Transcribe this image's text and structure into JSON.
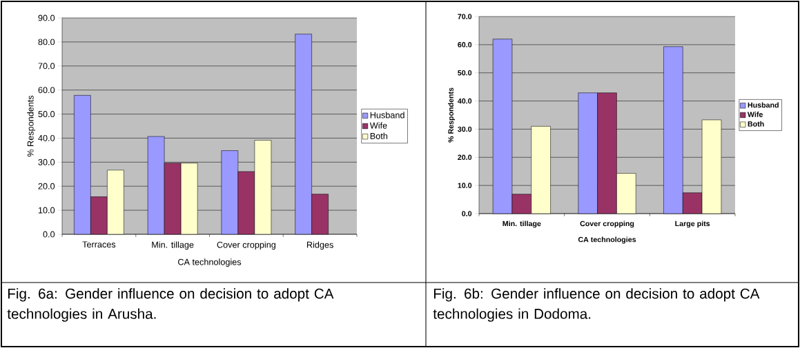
{
  "chart_data": [
    {
      "type": "bar",
      "xlabel": "CA technologies",
      "ylabel": "% Respondents",
      "categories": [
        "Terraces",
        "Min. tillage",
        "Cover cropping",
        "Ridges"
      ],
      "series": [
        {
          "name": "Husband",
          "color": "#9999ff",
          "values": [
            57.8,
            40.7,
            34.8,
            83.3
          ]
        },
        {
          "name": "Wife",
          "color": "#993366",
          "values": [
            15.6,
            29.6,
            26.1,
            16.7
          ]
        },
        {
          "name": "Both",
          "color": "#ffffcc",
          "values": [
            26.7,
            29.6,
            39.1,
            null
          ]
        }
      ],
      "ylim": [
        0,
        90
      ],
      "yticks": [
        {
          "value": 0,
          "label": "0.0"
        },
        {
          "value": 10,
          "label": "10.0"
        },
        {
          "value": 20,
          "label": "20.0"
        },
        {
          "value": 30,
          "label": "30.0"
        },
        {
          "value": 40,
          "label": "40.0"
        },
        {
          "value": 50,
          "label": "50.0"
        },
        {
          "value": 60,
          "label": "60.0"
        },
        {
          "value": 70,
          "label": "70.0"
        },
        {
          "value": 80,
          "label": "80.0"
        },
        {
          "value": 90,
          "label": "90.0"
        }
      ],
      "grid": "y",
      "legend": "right",
      "annotations": [
        "Fig. 6a: Gender influence on decision to adopt CA technologies in Arusha."
      ]
    },
    {
      "type": "bar",
      "xlabel": "CA technologies",
      "ylabel": "% Respondents",
      "categories": [
        "Min. tillage",
        "Cover cropping",
        "Large pits"
      ],
      "series": [
        {
          "name": "Husband",
          "color": "#9999ff",
          "values": [
            62.0,
            42.9,
            59.3
          ]
        },
        {
          "name": "Wife",
          "color": "#993366",
          "values": [
            6.9,
            42.9,
            7.4
          ]
        },
        {
          "name": "Both",
          "color": "#ffffcc",
          "values": [
            31.0,
            14.3,
            33.3
          ]
        }
      ],
      "ylim": [
        0,
        70
      ],
      "yticks": [
        {
          "value": 0,
          "label": "0.0"
        },
        {
          "value": 10,
          "label": "10.0"
        },
        {
          "value": 20,
          "label": "20.0"
        },
        {
          "value": 30,
          "label": "30.0"
        },
        {
          "value": 40,
          "label": "40.0"
        },
        {
          "value": 50,
          "label": "50.0"
        },
        {
          "value": 60,
          "label": "60.0"
        },
        {
          "value": 70,
          "label": "70.0"
        }
      ],
      "grid": "y",
      "legend": "right",
      "annotations": [
        "Fig. 6b: Gender influence on decision to adopt CA technologies in Dodoma."
      ]
    }
  ]
}
